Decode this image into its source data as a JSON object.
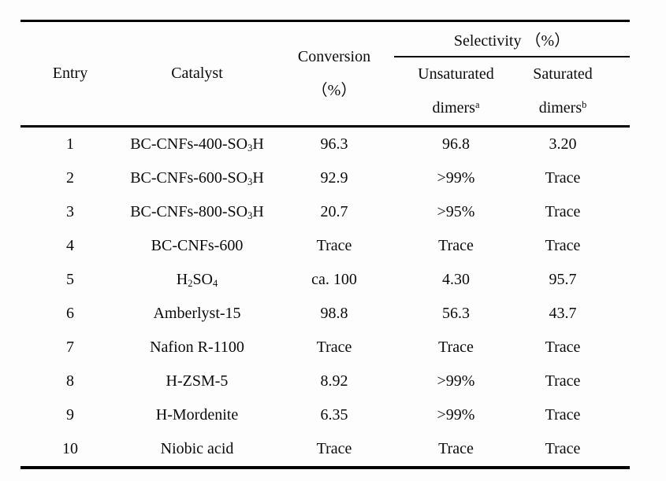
{
  "table": {
    "header": {
      "entry": "Entry",
      "catalyst": "Catalyst",
      "conversion_line1": "Conversion",
      "conversion_line2": "（%）",
      "selectivity_group": "Selectivity （%）",
      "unsaturated_line1": "Unsaturated",
      "unsaturated_line2": [
        [
          "t",
          "dimers"
        ],
        [
          "sup",
          "a"
        ]
      ],
      "saturated_line1": "Saturated",
      "saturated_line2": [
        [
          "t",
          "dimers"
        ],
        [
          "sup",
          "b"
        ]
      ]
    },
    "rows": [
      {
        "entry": "1",
        "catalyst": [
          [
            "t",
            "BC-CNFs-400-SO"
          ],
          [
            "sub",
            "3"
          ],
          [
            "t",
            "H"
          ]
        ],
        "conversion": "96.3",
        "unsaturated": "96.8",
        "saturated": "3.20"
      },
      {
        "entry": "2",
        "catalyst": [
          [
            "t",
            "BC-CNFs-600-SO"
          ],
          [
            "sub",
            "3"
          ],
          [
            "t",
            "H"
          ]
        ],
        "conversion": "92.9",
        "unsaturated": ">99%",
        "saturated": "Trace"
      },
      {
        "entry": "3",
        "catalyst": [
          [
            "t",
            "BC-CNFs-800-SO"
          ],
          [
            "sub",
            "3"
          ],
          [
            "t",
            "H"
          ]
        ],
        "conversion": "20.7",
        "unsaturated": ">95%",
        "saturated": "Trace"
      },
      {
        "entry": "4",
        "catalyst": [
          [
            "t",
            "BC-CNFs-600"
          ]
        ],
        "conversion": "Trace",
        "unsaturated": "Trace",
        "saturated": "Trace"
      },
      {
        "entry": "5",
        "catalyst": [
          [
            "t",
            "H"
          ],
          [
            "sub",
            "2"
          ],
          [
            "t",
            "SO"
          ],
          [
            "sub",
            "4"
          ]
        ],
        "conversion": "ca. 100",
        "unsaturated": "4.30",
        "saturated": "95.7"
      },
      {
        "entry": "6",
        "catalyst": [
          [
            "t",
            "Amberlyst-15"
          ]
        ],
        "conversion": "98.8",
        "unsaturated": "56.3",
        "saturated": "43.7"
      },
      {
        "entry": "7",
        "catalyst": [
          [
            "t",
            "Nafion R-1100"
          ]
        ],
        "conversion": "Trace",
        "unsaturated": "Trace",
        "saturated": "Trace"
      },
      {
        "entry": "8",
        "catalyst": [
          [
            "t",
            "H-ZSM-5"
          ]
        ],
        "conversion": "8.92",
        "unsaturated": ">99%",
        "saturated": "Trace"
      },
      {
        "entry": "9",
        "catalyst": [
          [
            "t",
            "H-Mordenite"
          ]
        ],
        "conversion": "6.35",
        "unsaturated": ">99%",
        "saturated": "Trace"
      },
      {
        "entry": "10",
        "catalyst": [
          [
            "t",
            "Niobic acid"
          ]
        ],
        "conversion": "Trace",
        "unsaturated": "Trace",
        "saturated": "Trace"
      }
    ]
  },
  "colors": {
    "text": "#0b0b0b",
    "rule": "#000000",
    "background": "#fdfdfd"
  }
}
